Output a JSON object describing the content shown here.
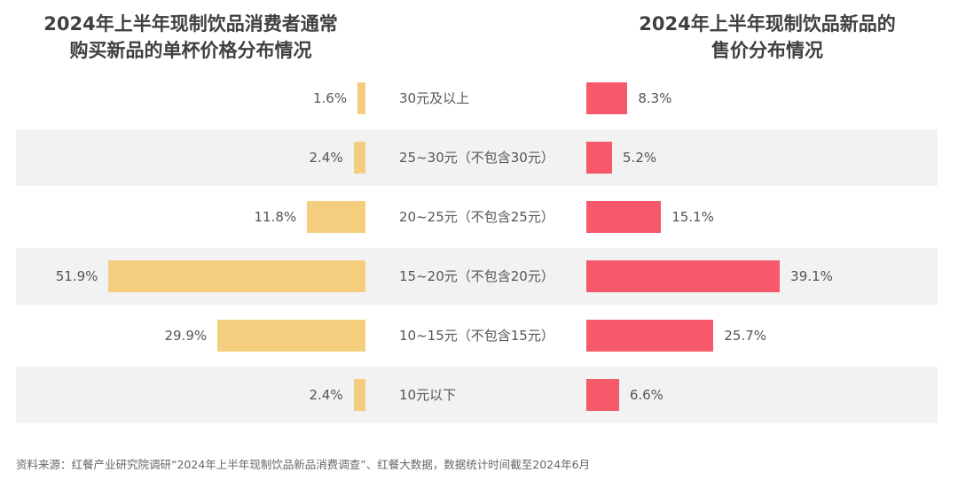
{
  "chart_data": [
    {
      "type": "bar",
      "orientation": "horizontal",
      "title": "2024年上半年现制饮品消费者通常购买新品的单杯价格分布情况",
      "title_lines": [
        "2024年上半年现制饮品消费者通常",
        "购买新品的单杯价格分布情况"
      ],
      "categories": [
        "30元及以上",
        "25~30元（不包含30元）",
        "20~25元（不包含25元）",
        "15~20元（不包含20元）",
        "10~15元（不包含15元）",
        "10元以下"
      ],
      "values": [
        1.6,
        2.4,
        11.8,
        51.9,
        29.9,
        2.4
      ],
      "labels": [
        "1.6%",
        "2.4%",
        "11.8%",
        "51.9%",
        "29.9%",
        "2.4%"
      ],
      "unit": "%",
      "direction": "leftward",
      "color": "#f5cd7e"
    },
    {
      "type": "bar",
      "orientation": "horizontal",
      "title": "2024年上半年现制饮品新品的售价分布情况",
      "title_lines": [
        "2024年上半年现制饮品新品的",
        "售价分布情况"
      ],
      "categories": [
        "30元及以上",
        "25~30元（不包含30元）",
        "20~25元（不包含25元）",
        "15~20元（不包含20元）",
        "10~15元（不包含15元）",
        "10元以下"
      ],
      "values": [
        8.3,
        5.2,
        15.1,
        39.1,
        25.7,
        6.6
      ],
      "labels": [
        "8.3%",
        "5.2%",
        "15.1%",
        "39.1%",
        "25.7%",
        "6.6%"
      ],
      "unit": "%",
      "direction": "rightward",
      "color": "#f65a6a"
    }
  ],
  "footnote": "资料来源：红餐产业研究院调研“2024年上半年现制饮品新品消费调查”、红餐大数据，数据统计时间截至2024年6月",
  "watermark": "红餐产业研究院",
  "band_color": "#f2f2f2"
}
